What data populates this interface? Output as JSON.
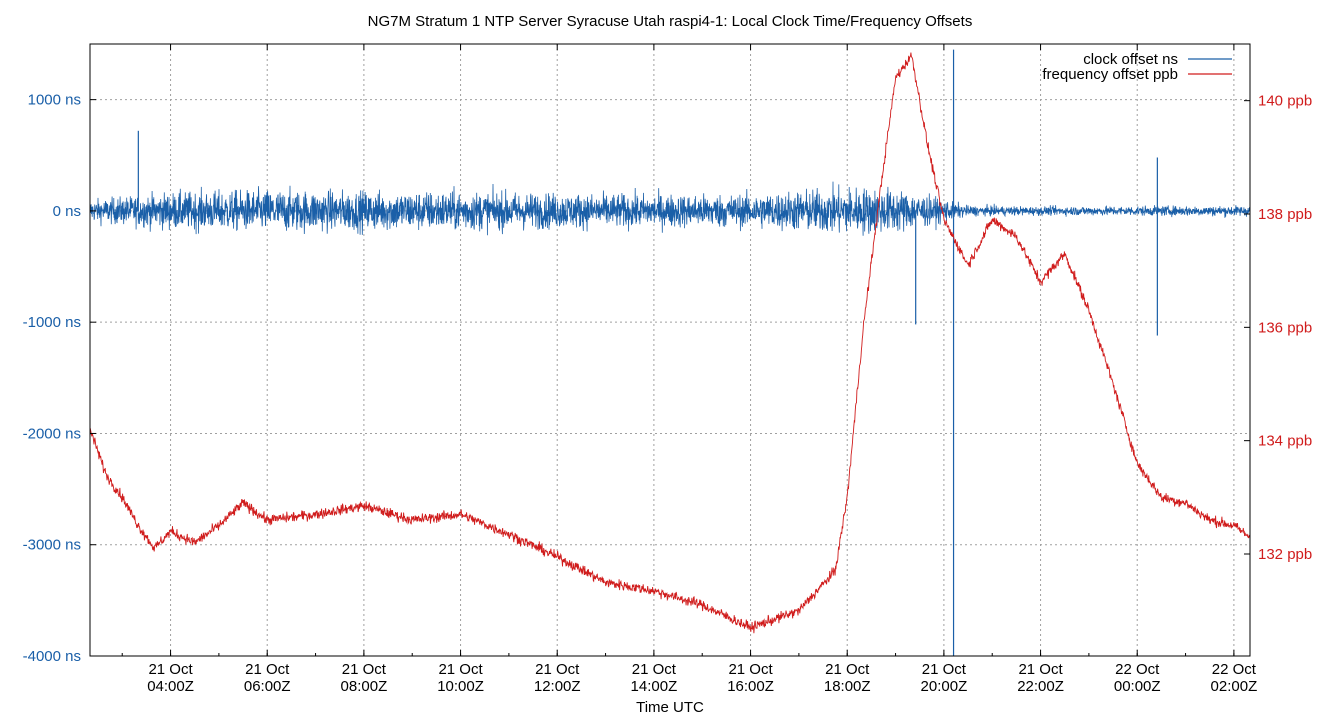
{
  "chart_data": {
    "type": "line",
    "title": "NG7M Stratum 1 NTP Server Syracuse Utah raspi4-1: Local Clock Time/Frequency Offsets",
    "xlabel": "Time UTC",
    "x_range": [
      "2020-10-21T02:20Z",
      "2020-10-22T02:20Z"
    ],
    "x_ticks": [
      {
        "date": "21 Oct",
        "time": "04:00Z",
        "t": "2020-10-21T04:00Z"
      },
      {
        "date": "21 Oct",
        "time": "06:00Z",
        "t": "2020-10-21T06:00Z"
      },
      {
        "date": "21 Oct",
        "time": "08:00Z",
        "t": "2020-10-21T08:00Z"
      },
      {
        "date": "21 Oct",
        "time": "10:00Z",
        "t": "2020-10-21T10:00Z"
      },
      {
        "date": "21 Oct",
        "time": "12:00Z",
        "t": "2020-10-21T12:00Z"
      },
      {
        "date": "21 Oct",
        "time": "14:00Z",
        "t": "2020-10-21T14:00Z"
      },
      {
        "date": "21 Oct",
        "time": "16:00Z",
        "t": "2020-10-21T16:00Z"
      },
      {
        "date": "21 Oct",
        "time": "18:00Z",
        "t": "2020-10-21T18:00Z"
      },
      {
        "date": "21 Oct",
        "time": "20:00Z",
        "t": "2020-10-21T20:00Z"
      },
      {
        "date": "21 Oct",
        "time": "22:00Z",
        "t": "2020-10-21T22:00Z"
      },
      {
        "date": "22 Oct",
        "time": "00:00Z",
        "t": "2020-10-22T00:00Z"
      },
      {
        "date": "22 Oct",
        "time": "02:00Z",
        "t": "2020-10-22T02:00Z"
      }
    ],
    "y_left": {
      "unit": "ns",
      "range": [
        -4000,
        1500
      ],
      "ticks": [
        "1000 ns",
        "0 ns",
        "-1000 ns",
        "-2000 ns",
        "-3000 ns",
        "-4000 ns"
      ],
      "tick_values": [
        1000,
        0,
        -1000,
        -2000,
        -3000,
        -4000
      ]
    },
    "y_right": {
      "unit": "ppb",
      "range": [
        130.2,
        141.0
      ],
      "ticks": [
        "140 ppb",
        "138 ppb",
        "136 ppb",
        "134 ppb",
        "132 ppb"
      ],
      "tick_values": [
        140,
        138,
        136,
        134,
        132
      ]
    },
    "grid": true,
    "legend_position": "top-right",
    "series": [
      {
        "name": "clock offset ns",
        "axis": "left",
        "color": "#1a5fa8",
        "envelope": [
          {
            "t": "2020-10-21T02:20Z",
            "lo": -300,
            "hi": 200
          },
          {
            "t": "2020-10-21T04:00Z",
            "lo": -420,
            "hi": 420
          },
          {
            "t": "2020-10-21T06:00Z",
            "lo": -480,
            "hi": 480
          },
          {
            "t": "2020-10-21T08:00Z",
            "lo": -450,
            "hi": 450
          },
          {
            "t": "2020-10-21T10:00Z",
            "lo": -450,
            "hi": 450
          },
          {
            "t": "2020-10-21T12:00Z",
            "lo": -400,
            "hi": 400
          },
          {
            "t": "2020-10-21T14:00Z",
            "lo": -380,
            "hi": 380
          },
          {
            "t": "2020-10-21T16:00Z",
            "lo": -380,
            "hi": 380
          },
          {
            "t": "2020-10-21T18:00Z",
            "lo": -550,
            "hi": 550
          },
          {
            "t": "2020-10-21T19:00Z",
            "lo": -500,
            "hi": 500
          },
          {
            "t": "2020-10-21T19:50Z",
            "lo": -300,
            "hi": 300
          },
          {
            "t": "2020-10-21T20:30Z",
            "lo": -120,
            "hi": 120
          },
          {
            "t": "2020-10-21T22:00Z",
            "lo": -100,
            "hi": 100
          },
          {
            "t": "2020-10-22T00:00Z",
            "lo": -110,
            "hi": 110
          },
          {
            "t": "2020-10-22T02:20Z",
            "lo": -120,
            "hi": 120
          }
        ],
        "spikes": [
          {
            "t": "2020-10-21T03:20Z",
            "value": 720
          },
          {
            "t": "2020-10-21T19:25Z",
            "value": -1020
          },
          {
            "t": "2020-10-21T20:12Z",
            "value": 1450
          },
          {
            "t": "2020-10-21T20:12Z",
            "value": -4000
          },
          {
            "t": "2020-10-22T00:25Z",
            "value": -1120
          },
          {
            "t": "2020-10-22T00:25Z",
            "value": 480
          }
        ]
      },
      {
        "name": "frequency offset ppb",
        "axis": "right",
        "color": "#d01c1c",
        "points": [
          {
            "t": "2020-10-21T02:20Z",
            "value": 134.2
          },
          {
            "t": "2020-10-21T02:40Z",
            "value": 133.4
          },
          {
            "t": "2020-10-21T03:00Z",
            "value": 133.0
          },
          {
            "t": "2020-10-21T03:20Z",
            "value": 132.5
          },
          {
            "t": "2020-10-21T03:40Z",
            "value": 132.1
          },
          {
            "t": "2020-10-21T04:00Z",
            "value": 132.4
          },
          {
            "t": "2020-10-21T04:30Z",
            "value": 132.2
          },
          {
            "t": "2020-10-21T05:00Z",
            "value": 132.5
          },
          {
            "t": "2020-10-21T05:30Z",
            "value": 132.9
          },
          {
            "t": "2020-10-21T06:00Z",
            "value": 132.6
          },
          {
            "t": "2020-10-21T07:00Z",
            "value": 132.7
          },
          {
            "t": "2020-10-21T08:00Z",
            "value": 132.85
          },
          {
            "t": "2020-10-21T09:00Z",
            "value": 132.6
          },
          {
            "t": "2020-10-21T10:00Z",
            "value": 132.7
          },
          {
            "t": "2020-10-21T11:00Z",
            "value": 132.35
          },
          {
            "t": "2020-10-21T12:00Z",
            "value": 131.95
          },
          {
            "t": "2020-10-21T13:00Z",
            "value": 131.5
          },
          {
            "t": "2020-10-21T14:00Z",
            "value": 131.35
          },
          {
            "t": "2020-10-21T15:00Z",
            "value": 131.1
          },
          {
            "t": "2020-10-21T16:00Z",
            "value": 130.7
          },
          {
            "t": "2020-10-21T17:00Z",
            "value": 131.0
          },
          {
            "t": "2020-10-21T17:45Z",
            "value": 131.7
          },
          {
            "t": "2020-10-21T18:00Z",
            "value": 133.0
          },
          {
            "t": "2020-10-21T18:20Z",
            "value": 136.0
          },
          {
            "t": "2020-10-21T18:40Z",
            "value": 138.3
          },
          {
            "t": "2020-10-21T19:00Z",
            "value": 140.4
          },
          {
            "t": "2020-10-21T19:20Z",
            "value": 140.8
          },
          {
            "t": "2020-10-21T19:40Z",
            "value": 139.2
          },
          {
            "t": "2020-10-21T20:00Z",
            "value": 137.9
          },
          {
            "t": "2020-10-21T20:30Z",
            "value": 137.1
          },
          {
            "t": "2020-10-21T21:00Z",
            "value": 137.9
          },
          {
            "t": "2020-10-21T21:30Z",
            "value": 137.6
          },
          {
            "t": "2020-10-21T22:00Z",
            "value": 136.8
          },
          {
            "t": "2020-10-21T22:30Z",
            "value": 137.3
          },
          {
            "t": "2020-10-21T23:00Z",
            "value": 136.3
          },
          {
            "t": "2020-10-21T23:30Z",
            "value": 135.0
          },
          {
            "t": "2020-10-22T00:00Z",
            "value": 133.6
          },
          {
            "t": "2020-10-22T00:30Z",
            "value": 133.0
          },
          {
            "t": "2020-10-22T01:00Z",
            "value": 132.9
          },
          {
            "t": "2020-10-22T01:30Z",
            "value": 132.6
          },
          {
            "t": "2020-10-22T02:00Z",
            "value": 132.5
          },
          {
            "t": "2020-10-22T02:20Z",
            "value": 132.3
          }
        ]
      }
    ]
  }
}
